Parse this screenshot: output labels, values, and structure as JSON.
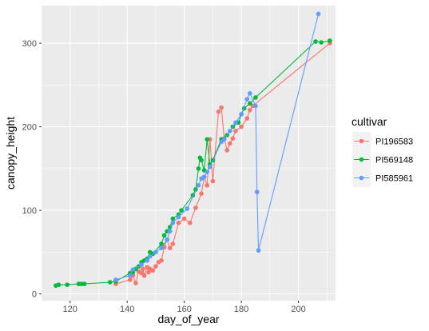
{
  "chart_data": {
    "type": "line",
    "xlabel": "day_of_year",
    "ylabel": "canopy_height",
    "xlim": [
      110,
      213
    ],
    "ylim": [
      -8,
      345
    ],
    "x_ticks": [
      120,
      140,
      160,
      180,
      200
    ],
    "x_tick_labels": [
      "120",
      "140",
      "160",
      "180",
      "200"
    ],
    "y_ticks": [
      0,
      100,
      200,
      300
    ],
    "y_tick_labels": [
      "0",
      "100",
      "200",
      "300"
    ],
    "grid": true,
    "legend": {
      "title": "cultivar",
      "position": "right"
    },
    "series": [
      {
        "name": "PI196583",
        "color": "#F8766D",
        "points": [
          [
            136,
            12
          ],
          [
            141,
            17
          ],
          [
            142,
            22
          ],
          [
            143,
            13
          ],
          [
            144,
            27
          ],
          [
            145,
            25
          ],
          [
            145.5,
            30
          ],
          [
            146,
            22
          ],
          [
            147,
            32
          ],
          [
            147.5,
            26
          ],
          [
            148,
            30
          ],
          [
            149,
            28
          ],
          [
            150,
            33
          ],
          [
            151,
            38
          ],
          [
            152,
            40
          ],
          [
            153,
            56
          ],
          [
            154,
            65
          ],
          [
            155,
            55
          ],
          [
            156,
            60
          ],
          [
            158,
            85
          ],
          [
            160,
            90
          ],
          [
            162,
            85
          ],
          [
            164,
            103
          ],
          [
            166,
            120
          ],
          [
            167,
            140
          ],
          [
            168,
            130
          ],
          [
            169,
            185
          ],
          [
            170,
            135
          ],
          [
            172,
            218
          ],
          [
            173,
            223
          ],
          [
            174,
            186
          ],
          [
            175,
            172
          ],
          [
            176,
            180
          ],
          [
            177,
            186
          ],
          [
            178,
            195
          ],
          [
            180,
            200
          ],
          [
            182,
            210
          ],
          [
            183,
            220
          ],
          [
            184,
            225
          ],
          [
            211,
            300
          ]
        ]
      },
      {
        "name": "PI569148",
        "color": "#00BA38",
        "points": [
          [
            115,
            10
          ],
          [
            116,
            11
          ],
          [
            119,
            11
          ],
          [
            123,
            12
          ],
          [
            124,
            12
          ],
          [
            125,
            12
          ],
          [
            134,
            14
          ],
          [
            136,
            15
          ],
          [
            141,
            25
          ],
          [
            142,
            26
          ],
          [
            143,
            30
          ],
          [
            144,
            33
          ],
          [
            145,
            38
          ],
          [
            146,
            40
          ],
          [
            147,
            42
          ],
          [
            148,
            50
          ],
          [
            149,
            48
          ],
          [
            152,
            60
          ],
          [
            153,
            70
          ],
          [
            154,
            75
          ],
          [
            155,
            80
          ],
          [
            156,
            90
          ],
          [
            158,
            95
          ],
          [
            159,
            100
          ],
          [
            163,
            118
          ],
          [
            164,
            125
          ],
          [
            165,
            150
          ],
          [
            165.5,
            163
          ],
          [
            166,
            160
          ],
          [
            167,
            148
          ],
          [
            168,
            185
          ],
          [
            169,
            155
          ],
          [
            170,
            160
          ],
          [
            173,
            185
          ],
          [
            175,
            190
          ],
          [
            177,
            200
          ],
          [
            179,
            205
          ],
          [
            180,
            215
          ],
          [
            181,
            222
          ],
          [
            183,
            228
          ],
          [
            185,
            235
          ],
          [
            206,
            302
          ],
          [
            208,
            301
          ],
          [
            211,
            303
          ]
        ]
      },
      {
        "name": "PI585961",
        "color": "#619CFF",
        "points": [
          [
            136,
            17
          ],
          [
            141,
            22
          ],
          [
            142,
            29
          ],
          [
            145,
            35
          ],
          [
            147,
            40
          ],
          [
            148,
            45
          ],
          [
            150,
            50
          ],
          [
            152,
            55
          ],
          [
            154,
            65
          ],
          [
            155,
            75
          ],
          [
            156,
            85
          ],
          [
            158,
            92
          ],
          [
            161,
            102
          ],
          [
            165,
            130
          ],
          [
            166,
            138
          ],
          [
            167,
            140
          ],
          [
            168,
            146
          ],
          [
            169,
            152
          ],
          [
            173,
            182
          ],
          [
            174,
            185
          ],
          [
            176,
            195
          ],
          [
            178,
            205
          ],
          [
            180,
            215
          ],
          [
            182,
            233
          ],
          [
            183,
            240
          ],
          [
            185,
            225
          ],
          [
            185.5,
            122
          ],
          [
            186,
            52
          ],
          [
            207,
            335
          ]
        ]
      }
    ]
  }
}
